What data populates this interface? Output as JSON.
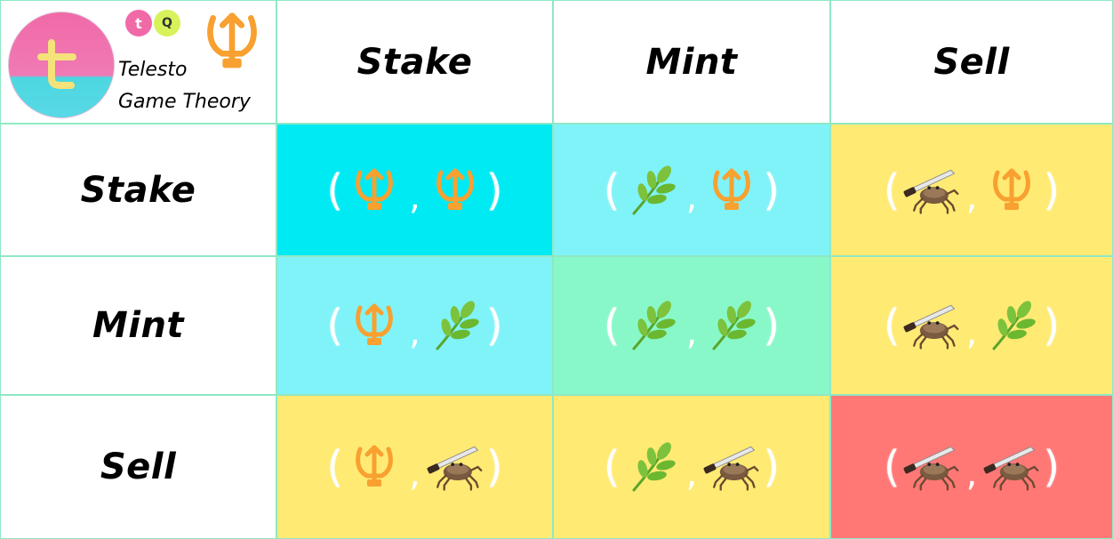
{
  "logo": {
    "line1": "Telesto",
    "line2": "Game Theory",
    "mini_badge_1": "t",
    "mini_badge_2": "Q"
  },
  "columns": [
    "Stake",
    "Mint",
    "Sell"
  ],
  "rows": [
    "Stake",
    "Mint",
    "Sell"
  ],
  "symbols": {
    "Stake": "trident-icon",
    "Mint": "leaf-sprig-icon",
    "Sell": "crab-with-knife-icon"
  },
  "colors": {
    "cyan": "#00eaf4",
    "light_cyan": "#80f3f8",
    "mint": "#88f8c8",
    "yellow": "#ffea74",
    "red": "#ff7876",
    "trident": "#f8a030",
    "leaf": "#7cc23c",
    "grid_line": "#8fe8c4"
  },
  "payoff_matrix": [
    [
      {
        "p1": "Stake",
        "p2": "Stake",
        "color": "cyan"
      },
      {
        "p1": "Mint",
        "p2": "Stake",
        "color": "light_cyan"
      },
      {
        "p1": "Sell",
        "p2": "Stake",
        "color": "yellow"
      }
    ],
    [
      {
        "p1": "Stake",
        "p2": "Mint",
        "color": "light_cyan"
      },
      {
        "p1": "Mint",
        "p2": "Mint",
        "color": "mint"
      },
      {
        "p1": "Sell",
        "p2": "Mint",
        "color": "yellow"
      }
    ],
    [
      {
        "p1": "Stake",
        "p2": "Sell",
        "color": "yellow"
      },
      {
        "p1": "Mint",
        "p2": "Sell",
        "color": "yellow"
      },
      {
        "p1": "Sell",
        "p2": "Sell",
        "color": "red"
      }
    ]
  ],
  "punct": {
    "open": "(",
    "comma": ",",
    "close": ")"
  }
}
